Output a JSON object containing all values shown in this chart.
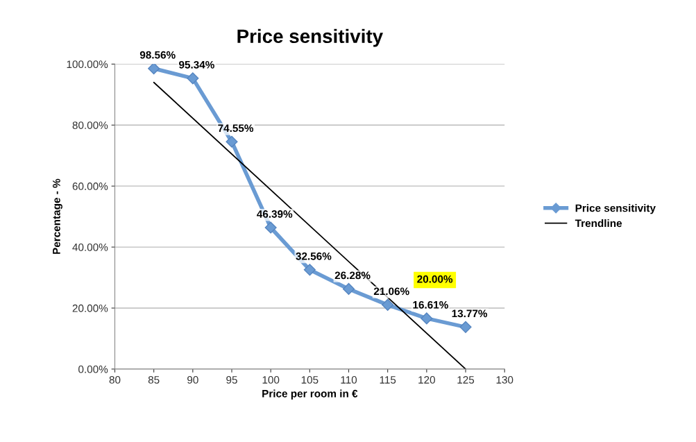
{
  "chart_data": {
    "type": "line",
    "title": "Price sensitivity",
    "xlabel": "Price per room in €",
    "ylabel": "Percentage - %",
    "xlim": [
      80,
      130
    ],
    "xticks": [
      80,
      85,
      90,
      95,
      100,
      105,
      110,
      115,
      120,
      125,
      130
    ],
    "ylim": [
      0,
      100
    ],
    "yticks": [
      {
        "value": 0,
        "label": "0.00%"
      },
      {
        "value": 20,
        "label": "20.00%"
      },
      {
        "value": 40,
        "label": "40.00%"
      },
      {
        "value": 60,
        "label": "60.00%"
      },
      {
        "value": 80,
        "label": "80.00%"
      },
      {
        "value": 100,
        "label": "100.00%"
      }
    ],
    "grid": "y",
    "legend": "right",
    "marker": "diamond",
    "series": [
      {
        "name": "Price sensitivity",
        "color": "#6a9bd3",
        "x": [
          85,
          90,
          95,
          100,
          105,
          110,
          115,
          120,
          125
        ],
        "values": [
          98.56,
          95.34,
          74.55,
          46.39,
          32.56,
          26.28,
          21.06,
          16.61,
          13.77
        ],
        "value_labels": [
          "98.56%",
          "95.34%",
          "74.55%",
          "46.39%",
          "32.56%",
          "26.28%",
          "21.06%",
          "16.61%",
          "13.77%"
        ]
      },
      {
        "name": "Trendline",
        "color": "#000000",
        "x": [
          85,
          125
        ],
        "values": [
          94,
          0
        ],
        "marker": "none"
      }
    ],
    "annotations": [
      {
        "text": "20.00%",
        "x": 118,
        "y": 20
      }
    ]
  }
}
